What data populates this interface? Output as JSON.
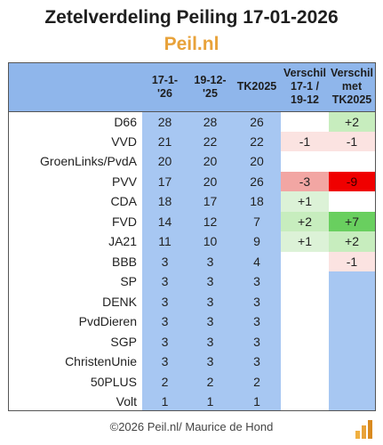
{
  "title": "Zetelverdeling Peiling 17-01-2026",
  "subtitle": "Peil.nl",
  "footer": "©2026 Peil.nl/ Maurice de Hond",
  "logo_icon": "peil-bar-logo-icon",
  "colors": {
    "header_bg": "#8fb6eb",
    "value_bg": "#a7c7f2",
    "subtitle": "#e8a23a",
    "positive_light": "#dcf2d7",
    "positive_mid": "#c7edbe",
    "positive_strong": "#69cf5f",
    "negative_light": "#fbe3e1",
    "negative_mid": "#f2a6a3",
    "negative_strong": "#f00000"
  },
  "chart_data": {
    "type": "table",
    "title": "Zetelverdeling Peiling 17-01-2026",
    "columns": [
      "",
      "17-1-'26",
      "19-12-'25",
      "TK2025",
      "Verschil 17-1 / 19-12",
      "Verschil met TK2025"
    ],
    "rows": [
      {
        "party": "D66",
        "p1": "28",
        "p2": "28",
        "tk": "26",
        "d1": "",
        "d2": "+2"
      },
      {
        "party": "VVD",
        "p1": "21",
        "p2": "22",
        "tk": "22",
        "d1": "-1",
        "d2": "-1"
      },
      {
        "party": "GroenLinks/PvdA",
        "p1": "20",
        "p2": "20",
        "tk": "20",
        "d1": "",
        "d2": ""
      },
      {
        "party": "PVV",
        "p1": "17",
        "p2": "20",
        "tk": "26",
        "d1": "-3",
        "d2": "-9"
      },
      {
        "party": "CDA",
        "p1": "18",
        "p2": "17",
        "tk": "18",
        "d1": "+1",
        "d2": ""
      },
      {
        "party": "FVD",
        "p1": "14",
        "p2": "12",
        "tk": "7",
        "d1": "+2",
        "d2": "+7"
      },
      {
        "party": "JA21",
        "p1": "11",
        "p2": "10",
        "tk": "9",
        "d1": "+1",
        "d2": "+2"
      },
      {
        "party": "BBB",
        "p1": "3",
        "p2": "3",
        "tk": "4",
        "d1": "",
        "d2": "-1"
      },
      {
        "party": "SP",
        "p1": "3",
        "p2": "3",
        "tk": "3",
        "d1": "",
        "d2": ""
      },
      {
        "party": "DENK",
        "p1": "3",
        "p2": "3",
        "tk": "3",
        "d1": "",
        "d2": ""
      },
      {
        "party": "PvdDieren",
        "p1": "3",
        "p2": "3",
        "tk": "3",
        "d1": "",
        "d2": ""
      },
      {
        "party": "SGP",
        "p1": "3",
        "p2": "3",
        "tk": "3",
        "d1": "",
        "d2": ""
      },
      {
        "party": "ChristenUnie",
        "p1": "3",
        "p2": "3",
        "tk": "3",
        "d1": "",
        "d2": ""
      },
      {
        "party": "50PLUS",
        "p1": "2",
        "p2": "2",
        "tk": "2",
        "d1": "",
        "d2": ""
      },
      {
        "party": "Volt",
        "p1": "1",
        "p2": "1",
        "tk": "1",
        "d1": "",
        "d2": ""
      }
    ]
  }
}
